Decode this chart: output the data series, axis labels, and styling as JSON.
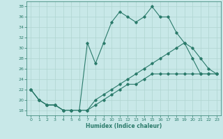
{
  "xlabel": "Humidex (Indice chaleur)",
  "ylabel": "",
  "background_color": "#c8e8e8",
  "grid_color": "#afd4d0",
  "line_color": "#2a7a6a",
  "xlim": [
    -0.5,
    23.5
  ],
  "ylim": [
    17,
    39
  ],
  "yticks": [
    18,
    20,
    22,
    24,
    26,
    28,
    30,
    32,
    34,
    36,
    38
  ],
  "xticks": [
    0,
    1,
    2,
    3,
    4,
    5,
    6,
    7,
    8,
    9,
    10,
    11,
    12,
    13,
    14,
    15,
    16,
    17,
    18,
    19,
    20,
    21,
    22,
    23
  ],
  "line1_x": [
    0,
    1,
    2,
    3,
    4,
    5,
    6,
    7,
    8,
    9,
    10,
    11,
    12,
    13,
    14,
    15,
    16,
    17,
    18,
    19,
    20,
    21,
    22,
    23
  ],
  "line1_y": [
    22,
    20,
    19,
    19,
    18,
    18,
    18,
    31,
    27,
    31,
    35,
    37,
    36,
    35,
    36,
    38,
    36,
    36,
    33,
    31,
    28,
    25,
    25,
    25
  ],
  "line2_x": [
    0,
    1,
    2,
    3,
    4,
    5,
    6,
    7,
    8,
    9,
    10,
    11,
    12,
    13,
    14,
    15,
    16,
    17,
    18,
    19,
    20,
    21,
    22,
    23
  ],
  "line2_y": [
    22,
    20,
    19,
    19,
    18,
    18,
    18,
    18,
    20,
    21,
    22,
    23,
    24,
    25,
    26,
    27,
    28,
    29,
    30,
    31,
    30,
    28,
    26,
    25
  ],
  "line3_x": [
    0,
    1,
    2,
    3,
    4,
    5,
    6,
    7,
    8,
    9,
    10,
    11,
    12,
    13,
    14,
    15,
    16,
    17,
    18,
    19,
    20,
    21,
    22,
    23
  ],
  "line3_y": [
    22,
    20,
    19,
    19,
    18,
    18,
    18,
    18,
    19,
    20,
    21,
    22,
    23,
    23,
    24,
    25,
    25,
    25,
    25,
    25,
    25,
    25,
    25,
    25
  ]
}
